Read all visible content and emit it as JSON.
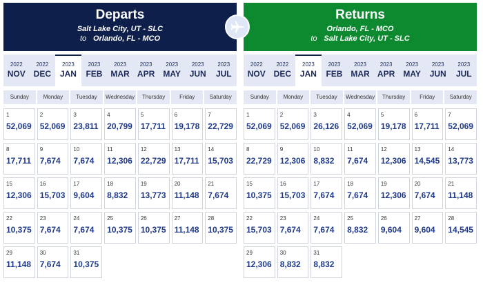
{
  "departs": {
    "title": "Departs",
    "from": "Salt Lake City, UT - SLC",
    "to_prefix": "to",
    "to": "Orlando, FL - MCO"
  },
  "returns": {
    "title": "Returns",
    "from": "Orlando, FL - MCO",
    "to_prefix": "to",
    "to": "Salt Lake City, UT - SLC"
  },
  "months": [
    {
      "year": "2022",
      "label": "NOV"
    },
    {
      "year": "2022",
      "label": "DEC"
    },
    {
      "year": "2023",
      "label": "JAN"
    },
    {
      "year": "2023",
      "label": "FEB"
    },
    {
      "year": "2023",
      "label": "MAR"
    },
    {
      "year": "2023",
      "label": "APR"
    },
    {
      "year": "2023",
      "label": "MAY"
    },
    {
      "year": "2023",
      "label": "JUN"
    },
    {
      "year": "2023",
      "label": "JUL"
    }
  ],
  "active_month": "JAN",
  "weekdays": [
    "Sunday",
    "Monday",
    "Tuesday",
    "Wednesday",
    "Thursday",
    "Friday",
    "Saturday"
  ],
  "departs_prices": [
    "52,069",
    "52,069",
    "23,811",
    "20,799",
    "17,711",
    "19,178",
    "22,729",
    "17,711",
    "7,674",
    "7,674",
    "12,306",
    "22,729",
    "17,711",
    "15,703",
    "12,306",
    "15,703",
    "9,604",
    "8,832",
    "13,773",
    "11,148",
    "7,674",
    "10,375",
    "7,674",
    "7,674",
    "10,375",
    "10,375",
    "11,148",
    "10,375",
    "11,148",
    "7,674",
    "10,375"
  ],
  "returns_prices": [
    "52,069",
    "52,069",
    "26,126",
    "52,069",
    "19,178",
    "17,711",
    "52,069",
    "22,729",
    "12,306",
    "8,832",
    "7,674",
    "12,306",
    "14,545",
    "13,773",
    "10,375",
    "15,703",
    "7,674",
    "7,674",
    "12,306",
    "7,674",
    "11,148",
    "15,703",
    "7,674",
    "7,674",
    "8,832",
    "9,604",
    "9,604",
    "14,545",
    "12,306",
    "8,832",
    "8,832"
  ],
  "icons": {
    "swap": "airplane-icon"
  },
  "colors": {
    "departs_header": "#0f1f4b",
    "returns_header": "#0d8a2f",
    "price": "#1f3a8a"
  }
}
